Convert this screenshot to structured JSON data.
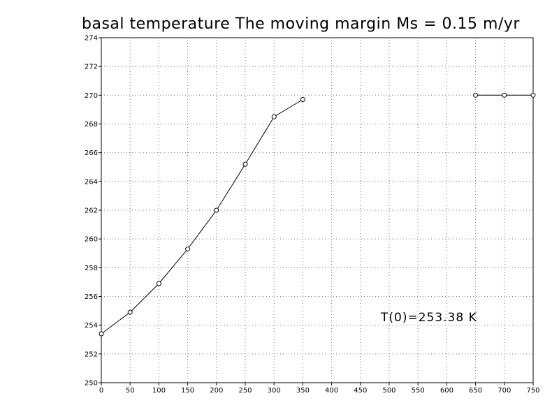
{
  "chart_data": {
    "type": "line",
    "title": "basal temperature  The moving margin Ms = 0.15 m/yr",
    "xlabel": "",
    "ylabel": "",
    "xlim": [
      0,
      750
    ],
    "ylim": [
      250,
      274
    ],
    "xticks": [
      0,
      50,
      100,
      150,
      200,
      250,
      300,
      350,
      400,
      450,
      500,
      550,
      600,
      650,
      700,
      750
    ],
    "yticks": [
      250,
      252,
      254,
      256,
      258,
      260,
      262,
      264,
      266,
      268,
      270,
      272,
      274
    ],
    "grid": true,
    "annotation": "T(0)=253.38  K",
    "series": [
      {
        "segments": [
          [
            [
              0,
              253.4
            ],
            [
              50,
              254.9
            ],
            [
              100,
              256.9
            ],
            [
              150,
              259.3
            ],
            [
              200,
              262.0
            ],
            [
              250,
              265.2
            ],
            [
              300,
              268.5
            ],
            [
              350,
              269.7
            ]
          ],
          [
            [
              650,
              270.0
            ],
            [
              700,
              270.0
            ],
            [
              750,
              270.0
            ]
          ]
        ]
      }
    ]
  }
}
